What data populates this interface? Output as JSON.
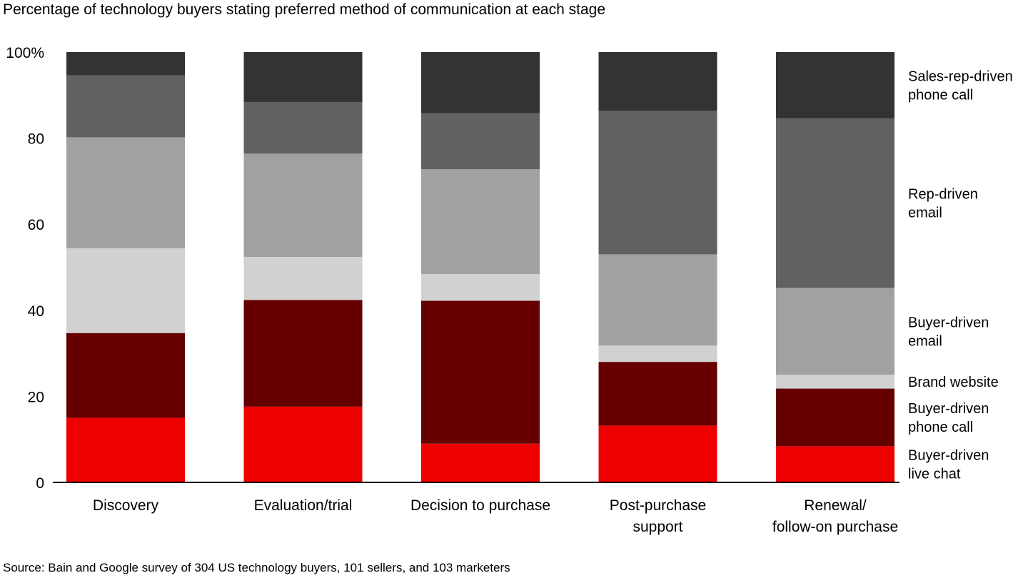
{
  "chart_data": {
    "type": "bar",
    "stacked": true,
    "title": "Percentage of technology buyers stating preferred method of communication at each stage",
    "source": "Source: Bain and Google survey of 304 US technology buyers, 101 sellers, and 103 marketers",
    "categories": [
      [
        "Discovery"
      ],
      [
        "Evaluation/trial"
      ],
      [
        "Decision to purchase"
      ],
      [
        "Post-purchase",
        "support"
      ],
      [
        "Renewal/",
        "follow-on purchase"
      ]
    ],
    "ylim": [
      0,
      100
    ],
    "yticks": [
      {
        "value": 0,
        "label": "0"
      },
      {
        "value": 20,
        "label": "20"
      },
      {
        "value": 40,
        "label": "40"
      },
      {
        "value": 60,
        "label": "60"
      },
      {
        "value": 80,
        "label": "80"
      },
      {
        "value": 100,
        "label": "100%"
      }
    ],
    "legend_position": "right",
    "series": [
      {
        "name": [
          "Buyer-driven",
          "live chat"
        ],
        "color": "#ee0000",
        "values": [
          15,
          17.6,
          9,
          13.2,
          8.4
        ]
      },
      {
        "name": [
          "Buyer-driven",
          "phone call"
        ],
        "color": "#660000",
        "values": [
          19.7,
          24.8,
          33.2,
          14.8,
          13.4
        ]
      },
      {
        "name": [
          "Brand website"
        ],
        "color": "#d1d1d1",
        "values": [
          19.7,
          10,
          6.2,
          3.8,
          3.2
        ]
      },
      {
        "name": [
          "Buyer-driven",
          "email"
        ],
        "color": "#a1a1a1",
        "values": [
          25.8,
          24,
          24.4,
          21.2,
          20.2
        ]
      },
      {
        "name": [
          "Rep-driven",
          "email"
        ],
        "color": "#616161",
        "values": [
          14.4,
          12,
          13,
          33.4,
          39.4
        ]
      },
      {
        "name": [
          "Sales-rep-driven",
          "phone call"
        ],
        "color": "#333333",
        "values": [
          5.4,
          11.6,
          14.2,
          13.6,
          15.4
        ]
      }
    ]
  }
}
